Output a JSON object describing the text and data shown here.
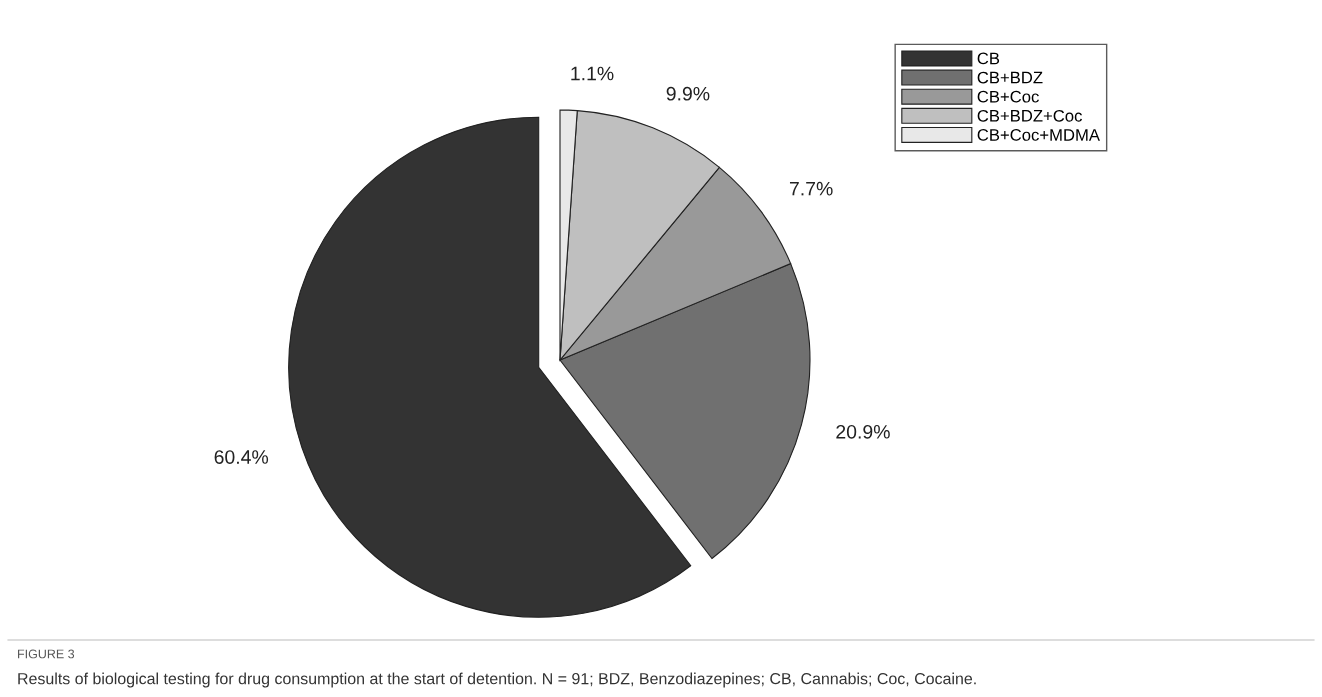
{
  "chart_data": {
    "type": "pie",
    "categories": [
      "CB",
      "CB+BDZ",
      "CB+Coc",
      "CB+BDZ+Coc",
      "CB+Coc+MDMA"
    ],
    "values": [
      60.4,
      20.9,
      7.7,
      9.9,
      1.1
    ],
    "colors": [
      "#333333",
      "#707070",
      "#999999",
      "#bfbfbf",
      "#e8e8e8"
    ],
    "value_labels": [
      "60.4%",
      "20.9%",
      "7.7%",
      "9.9%",
      "1.1%"
    ],
    "legend": "top right",
    "annotations": [
      "FIGURE 3",
      "Results of biological testing for drug consumption at the start of detention. N = 91; BDZ, Benzodiazepines; CB, Cannabis; Coc, Cocaine."
    ]
  }
}
